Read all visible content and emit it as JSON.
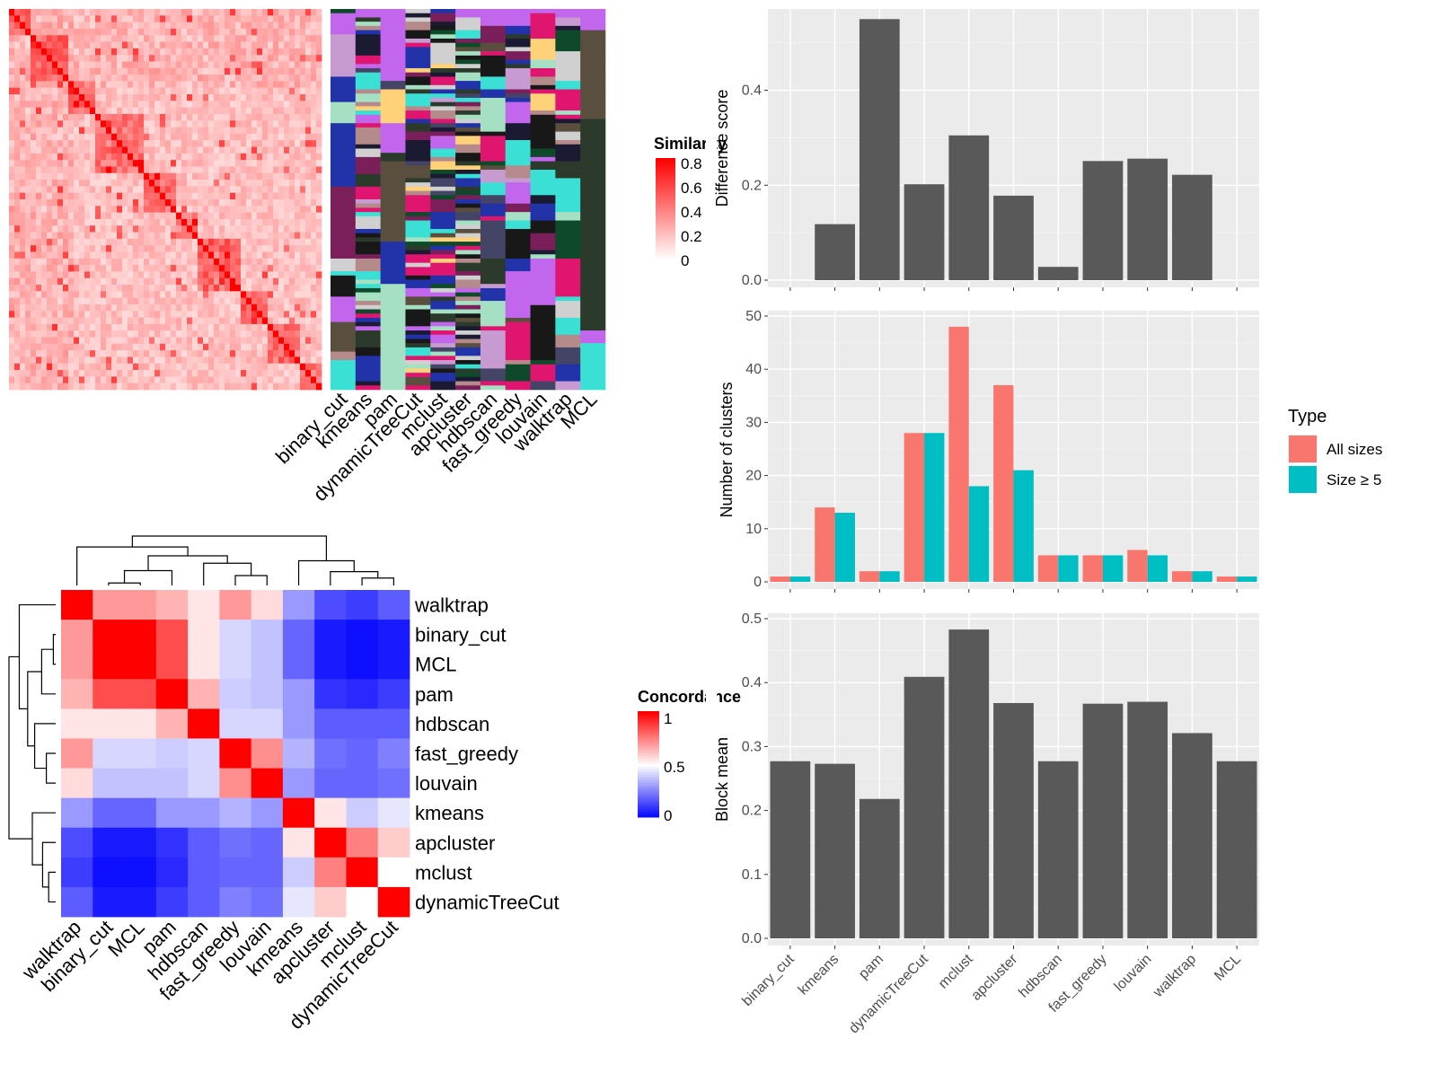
{
  "methods": [
    "binary_cut",
    "kmeans",
    "pam",
    "dynamicTreeCut",
    "mclust",
    "apcluster",
    "hdbscan",
    "fast_greedy",
    "louvain",
    "walktrap",
    "MCL"
  ],
  "similarity_legend": {
    "title": "Similarity",
    "labels": [
      "0.8",
      "0.6",
      "0.4",
      "0.2",
      "0"
    ],
    "colors": [
      "#ffffff",
      "#ff0000"
    ]
  },
  "concordance_legend": {
    "title": "Concordance",
    "labels": [
      "1",
      "0.5",
      "0"
    ],
    "colors": [
      "#0000ff",
      "#ffffff",
      "#ff0000"
    ]
  },
  "concordance_order": [
    "walktrap",
    "binary_cut",
    "MCL",
    "pam",
    "hdbscan",
    "fast_greedy",
    "louvain",
    "kmeans",
    "apcluster",
    "mclust",
    "dynamicTreeCut"
  ],
  "cluster_palette": [
    "#c266ed",
    "#2b3a2a",
    "#3be0d5",
    "#e0156f",
    "#5a4f3f",
    "#1a1a33",
    "#a5e0c3",
    "#b58a8a",
    "#0e4a2a",
    "#ffd27a",
    "#7a1f5a",
    "#444466",
    "#c79bd1",
    "#181818",
    "#d0d0d0",
    "#2233aa"
  ],
  "chart_data": [
    {
      "type": "heatmap",
      "title": "",
      "description_of_axes": "similarity matrix",
      "legend_title": "Similarity",
      "color_range": [
        0,
        0.85
      ],
      "tick_values": [
        0,
        0.2,
        0.4,
        0.6,
        0.8
      ]
    },
    {
      "type": "heatmap",
      "title": "",
      "x_labels": [
        "walktrap",
        "binary_cut",
        "MCL",
        "pam",
        "hdbscan",
        "fast_greedy",
        "louvain",
        "kmeans",
        "apcluster",
        "mclust",
        "dynamicTreeCut"
      ],
      "y_labels": [
        "walktrap",
        "binary_cut",
        "MCL",
        "pam",
        "hdbscan",
        "fast_greedy",
        "louvain",
        "kmeans",
        "apcluster",
        "mclust",
        "dynamicTreeCut"
      ],
      "legend_title": "Concordance",
      "values": [
        [
          1.0,
          0.7,
          0.7,
          0.65,
          0.55,
          0.7,
          0.57,
          0.3,
          0.15,
          0.12,
          0.18
        ],
        [
          0.7,
          1.0,
          1.0,
          0.85,
          0.55,
          0.42,
          0.38,
          0.2,
          0.05,
          0.03,
          0.05
        ],
        [
          0.7,
          1.0,
          1.0,
          0.85,
          0.55,
          0.42,
          0.38,
          0.2,
          0.05,
          0.03,
          0.05
        ],
        [
          0.65,
          0.85,
          0.85,
          1.0,
          0.65,
          0.4,
          0.38,
          0.3,
          0.1,
          0.08,
          0.12
        ],
        [
          0.55,
          0.55,
          0.55,
          0.65,
          1.0,
          0.42,
          0.42,
          0.3,
          0.18,
          0.18,
          0.18
        ],
        [
          0.7,
          0.42,
          0.42,
          0.4,
          0.42,
          1.0,
          0.72,
          0.35,
          0.22,
          0.2,
          0.25
        ],
        [
          0.57,
          0.38,
          0.38,
          0.38,
          0.42,
          0.72,
          1.0,
          0.3,
          0.2,
          0.2,
          0.22
        ],
        [
          0.3,
          0.2,
          0.2,
          0.3,
          0.3,
          0.35,
          0.3,
          1.0,
          0.55,
          0.4,
          0.45
        ],
        [
          0.15,
          0.05,
          0.05,
          0.1,
          0.18,
          0.22,
          0.2,
          0.55,
          1.0,
          0.75,
          0.6
        ],
        [
          0.12,
          0.03,
          0.03,
          0.08,
          0.18,
          0.2,
          0.2,
          0.4,
          0.75,
          1.0,
          0.5
        ],
        [
          0.18,
          0.05,
          0.05,
          0.12,
          0.18,
          0.25,
          0.22,
          0.45,
          0.6,
          0.5,
          1.0
        ]
      ]
    },
    {
      "type": "bar",
      "categories": [
        "binary_cut",
        "kmeans",
        "pam",
        "dynamicTreeCut",
        "mclust",
        "apcluster",
        "hdbscan",
        "fast_greedy",
        "louvain",
        "walktrap",
        "MCL"
      ],
      "values": [
        0,
        0.118,
        0.55,
        0.202,
        0.305,
        0.178,
        0.028,
        0.251,
        0.256,
        0.222,
        0
      ],
      "ylabel": "Difference score",
      "ylim": [
        0,
        0.56
      ],
      "yticks": [
        0.0,
        0.2,
        0.4
      ]
    },
    {
      "type": "bar",
      "categories": [
        "binary_cut",
        "kmeans",
        "pam",
        "dynamicTreeCut",
        "mclust",
        "apcluster",
        "hdbscan",
        "fast_greedy",
        "louvain",
        "walktrap",
        "MCL"
      ],
      "series": [
        {
          "name": "All sizes",
          "values": [
            1,
            14,
            2,
            28,
            48,
            37,
            5,
            5,
            6,
            2,
            1
          ]
        },
        {
          "name": "Size ≥ 5",
          "values": [
            1,
            13,
            2,
            28,
            18,
            21,
            5,
            5,
            5,
            2,
            1
          ]
        }
      ],
      "ylabel": "Number of clusters",
      "ylim": [
        0,
        50
      ],
      "yticks": [
        0,
        10,
        20,
        30,
        40,
        50
      ],
      "legend_title": "Type",
      "legend_position": "right",
      "colors": [
        "#f8766d",
        "#00bfc4"
      ]
    },
    {
      "type": "bar",
      "categories": [
        "binary_cut",
        "kmeans",
        "pam",
        "dynamicTreeCut",
        "mclust",
        "apcluster",
        "hdbscan",
        "fast_greedy",
        "louvain",
        "walktrap",
        "MCL"
      ],
      "values": [
        0.277,
        0.273,
        0.218,
        0.409,
        0.483,
        0.368,
        0.277,
        0.367,
        0.37,
        0.321,
        0.277
      ],
      "ylabel": "Block mean",
      "ylim": [
        0,
        0.5
      ],
      "yticks": [
        0.0,
        0.1,
        0.2,
        0.3,
        0.4,
        0.5
      ]
    }
  ]
}
